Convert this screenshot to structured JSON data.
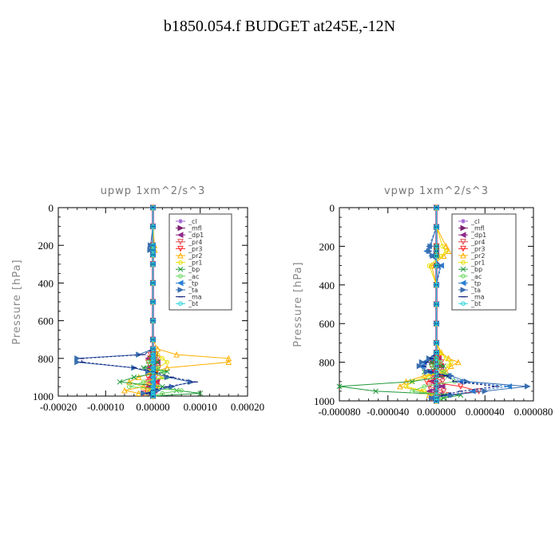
{
  "page": {
    "title": "b1850.054.f  BUDGET at245E,-12N"
  },
  "legend_labels": [
    "_cl",
    "_mfl",
    "_dp1",
    "_pr4",
    "_pr3",
    "_pr2",
    "_pr1",
    "_bp",
    "_ac",
    "_tp",
    "_ta",
    "_ma",
    "_bt"
  ],
  "series_colors": [
    "#9b59d0",
    "#7a1f6e",
    "#8e2a8a",
    "#e0464c",
    "#ff2a2a",
    "#ffb000",
    "#e8e000",
    "#1f9a3a",
    "#66d65a",
    "#2a7fd4",
    "#3a6fb0",
    "#0b1a7a",
    "#22d3d8"
  ],
  "chart_data": [
    {
      "type": "line",
      "title": "upwp   1xm^2/s^3",
      "xlabel": "",
      "ylabel": "Pressure [hPa]",
      "xlim": [
        -0.0002,
        0.0002
      ],
      "ylim": [
        1000,
        0
      ],
      "xticks": [
        "-0.00020",
        "-0.00010",
        "0.00000",
        "0.00010",
        "0.00020"
      ],
      "yticks": [
        "0",
        "200",
        "400",
        "600",
        "800",
        "1000"
      ],
      "pressure": [
        0,
        100,
        200,
        225,
        250,
        300,
        400,
        500,
        600,
        700,
        750,
        780,
        800,
        820,
        850,
        870,
        900,
        925,
        950,
        970,
        985,
        1000
      ],
      "series": [
        {
          "name": "_cl",
          "values": [
            0,
            0,
            0,
            0,
            0,
            0,
            0,
            0,
            0,
            0,
            0,
            0,
            0,
            0,
            0,
            0,
            0,
            0,
            0,
            0,
            0,
            0
          ]
        },
        {
          "name": "_mfl",
          "values": [
            0,
            0,
            0,
            0,
            0,
            0,
            0,
            0,
            0,
            0,
            0,
            0,
            0,
            0,
            0,
            0,
            0,
            0,
            0,
            0,
            0,
            0
          ]
        },
        {
          "name": "_dp1",
          "values": [
            0,
            0,
            0,
            0,
            0,
            0,
            0,
            0,
            0,
            0,
            0,
            5e-06,
            -1e-05,
            1e-05,
            -8e-06,
            5e-06,
            -5e-06,
            8e-06,
            -6e-06,
            4e-06,
            0,
            0
          ]
        },
        {
          "name": "_pr4",
          "values": [
            0,
            0,
            0,
            0,
            0,
            0,
            0,
            0,
            0,
            0,
            0,
            -5e-06,
            1e-05,
            -1e-05,
            1.2e-05,
            -6e-06,
            5e-06,
            -1e-05,
            8e-06,
            -1.2e-05,
            4e-06,
            0
          ]
        },
        {
          "name": "_pr3",
          "values": [
            0,
            0,
            0,
            0,
            0,
            0,
            0,
            0,
            0,
            0,
            0,
            4e-06,
            -6e-06,
            8e-06,
            -5e-06,
            8e-06,
            -1e-05,
            1e-05,
            -1.5e-05,
            6e-06,
            -2e-05,
            0
          ]
        },
        {
          "name": "_pr2",
          "values": [
            0,
            0,
            3e-06,
            4e-06,
            0,
            0,
            0,
            0,
            0,
            0,
            1e-05,
            5e-05,
            0.00016,
            0.00016,
            3e-05,
            5e-06,
            -3e-05,
            -5e-05,
            -2e-05,
            -6e-05,
            -3e-05,
            0
          ]
        },
        {
          "name": "_pr1",
          "values": [
            0,
            0,
            0,
            0,
            0,
            0,
            0,
            0,
            0,
            0,
            0,
            1e-05,
            2e-05,
            3e-05,
            1e-05,
            -1e-05,
            2e-05,
            -2e-05,
            1e-05,
            -1e-05,
            0,
            0
          ]
        },
        {
          "name": "_bp",
          "values": [
            0,
            0,
            0,
            0,
            0,
            0,
            0,
            0,
            0,
            0,
            0,
            0,
            -5e-06,
            1e-05,
            -2e-05,
            3e-05,
            -4e-05,
            -7e-05,
            2e-05,
            5e-05,
            0.0001,
            0
          ]
        },
        {
          "name": "_ac",
          "values": [
            0,
            0,
            0,
            0,
            0,
            0,
            0,
            0,
            0,
            0,
            0,
            0,
            5e-06,
            -1e-05,
            1e-05,
            2e-05,
            3e-05,
            -2e-05,
            -5e-05,
            6e-05,
            2e-05,
            0
          ]
        },
        {
          "name": "_tp",
          "values": [
            0,
            0,
            0,
            0,
            0,
            0,
            0,
            0,
            0,
            0,
            0,
            0,
            0,
            0,
            0,
            0,
            0,
            0,
            0,
            0,
            0,
            0
          ]
        },
        {
          "name": "_ta",
          "values": [
            0,
            0,
            -5e-06,
            -6e-06,
            0,
            0,
            0,
            0,
            0,
            0,
            0,
            -3e-05,
            -0.00016,
            -0.00016,
            -4e-05,
            -1e-05,
            3e-05,
            8e-05,
            4e-05,
            1e-05,
            -2e-05,
            0
          ]
        },
        {
          "name": "_ma",
          "values": [
            0,
            0,
            0,
            0,
            0,
            0,
            0,
            0,
            0,
            0,
            0,
            -2e-05,
            -0.00015,
            -0.00015,
            -4e-05,
            0,
            4e-05,
            9e-05,
            3e-05,
            0,
            -1e-05,
            0
          ]
        },
        {
          "name": "_bt",
          "values": [
            0,
            0,
            0,
            0,
            0,
            0,
            0,
            0,
            0,
            0,
            0,
            0,
            0,
            0,
            0,
            0,
            0,
            0,
            0,
            0,
            0,
            0
          ]
        }
      ]
    },
    {
      "type": "line",
      "title": "vpwp   1xm^2/s^3",
      "xlabel": "",
      "ylabel": "Pressure [hPa]",
      "xlim": [
        -8e-05,
        8e-05
      ],
      "ylim": [
        1000,
        0
      ],
      "xticks": [
        "-0.000080",
        "-0.000040",
        "0.000000",
        "0.000040",
        "0.000080"
      ],
      "yticks": [
        "0",
        "200",
        "400",
        "600",
        "800",
        "1000"
      ],
      "pressure": [
        0,
        100,
        200,
        225,
        250,
        300,
        400,
        500,
        600,
        700,
        750,
        780,
        800,
        820,
        850,
        870,
        900,
        925,
        950,
        970,
        985,
        1000
      ],
      "series": [
        {
          "name": "_cl",
          "values": [
            0,
            0,
            0,
            0,
            0,
            0,
            0,
            0,
            0,
            0,
            0,
            0,
            0,
            0,
            0,
            0,
            0,
            0,
            0,
            0,
            0,
            0
          ]
        },
        {
          "name": "_mfl",
          "values": [
            0,
            0,
            0,
            0,
            0,
            0,
            0,
            0,
            0,
            0,
            0,
            0,
            0,
            0,
            0,
            0,
            0,
            0,
            0,
            0,
            0,
            0
          ]
        },
        {
          "name": "_dp1",
          "values": [
            0,
            0,
            0,
            0,
            0,
            0,
            0,
            0,
            0,
            0,
            0,
            2e-06,
            -4e-06,
            4e-06,
            -3e-06,
            3e-06,
            -4e-06,
            5e-06,
            -6e-06,
            3e-06,
            0,
            0
          ]
        },
        {
          "name": "_pr4",
          "values": [
            0,
            0,
            0,
            0,
            0,
            0,
            0,
            0,
            0,
            0,
            0,
            -2e-06,
            4e-06,
            -4e-06,
            5e-06,
            -4e-06,
            5e-06,
            -6e-06,
            6e-06,
            -3e-06,
            0,
            0
          ]
        },
        {
          "name": "_pr3",
          "values": [
            0,
            0,
            0,
            0,
            0,
            0,
            0,
            0,
            0,
            0,
            0,
            2e-06,
            -3e-06,
            4e-06,
            -5e-06,
            6e-06,
            -8e-06,
            2e-05,
            3.5e-05,
            1e-05,
            -4e-06,
            0
          ]
        },
        {
          "name": "_pr2",
          "values": [
            0,
            0,
            8e-06,
            1e-05,
            6e-06,
            -4e-06,
            0,
            0,
            0,
            0,
            4e-06,
            1e-05,
            1.8e-05,
            1.2e-05,
            8e-06,
            -1e-05,
            -2.5e-05,
            -3e-05,
            -1.2e-05,
            -6e-06,
            0,
            0
          ]
        },
        {
          "name": "_pr1",
          "values": [
            0,
            0,
            5e-06,
            8e-06,
            4e-06,
            -6e-06,
            0,
            0,
            0,
            0,
            3e-06,
            8e-06,
            1.2e-05,
            1e-05,
            5e-06,
            -6e-06,
            -2e-05,
            -2.5e-05,
            -1e-05,
            -4e-06,
            0,
            0
          ]
        },
        {
          "name": "_bp",
          "values": [
            0,
            0,
            0,
            0,
            0,
            0,
            0,
            0,
            0,
            0,
            0,
            0,
            -4e-06,
            6e-06,
            -1e-05,
            1e-05,
            -2e-05,
            -8e-05,
            -5e-05,
            2e-05,
            6e-06,
            0
          ]
        },
        {
          "name": "_ac",
          "values": [
            0,
            0,
            0,
            0,
            0,
            0,
            0,
            0,
            0,
            0,
            0,
            0,
            3e-06,
            -4e-06,
            6e-06,
            1e-05,
            1.5e-05,
            -1e-05,
            -2e-05,
            8e-06,
            3e-06,
            0
          ]
        },
        {
          "name": "_tp",
          "values": [
            0,
            0,
            -6e-06,
            -8e-06,
            -4e-06,
            4e-06,
            0,
            0,
            0,
            0,
            0,
            -5e-06,
            -1e-05,
            -1.2e-05,
            -6e-06,
            1e-05,
            2e-05,
            6e-05,
            3e-05,
            1e-05,
            -4e-06,
            0
          ]
        },
        {
          "name": "_ta",
          "values": [
            0,
            0,
            -5e-06,
            -6e-06,
            -3e-06,
            3e-06,
            0,
            0,
            0,
            0,
            0,
            -6e-06,
            -1.2e-05,
            -1.4e-05,
            -8e-06,
            1.2e-05,
            2.5e-05,
            7.5e-05,
            4e-05,
            1.2e-05,
            -4e-06,
            0
          ]
        },
        {
          "name": "_ma",
          "values": [
            0,
            0,
            0,
            0,
            0,
            0,
            0,
            0,
            0,
            0,
            0,
            -4e-06,
            -8e-06,
            -1e-05,
            -5e-06,
            8e-06,
            1.5e-05,
            5e-05,
            2e-05,
            6e-06,
            0,
            0
          ]
        },
        {
          "name": "_bt",
          "values": [
            0,
            0,
            0,
            0,
            0,
            0,
            0,
            0,
            0,
            0,
            0,
            0,
            0,
            0,
            0,
            0,
            0,
            0,
            0,
            0,
            0,
            0
          ]
        }
      ]
    }
  ]
}
